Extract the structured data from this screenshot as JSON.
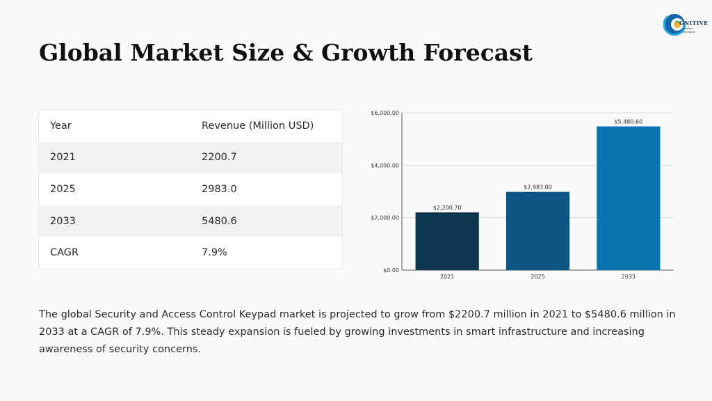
{
  "header": {
    "title": "Global Market Size & Growth Forecast",
    "logo": {
      "brand": "GNITIVE",
      "sub_line1": "market",
      "sub_line2": "research"
    }
  },
  "table": {
    "headers": [
      "Year",
      "Revenue (Million USD)"
    ],
    "rows": [
      [
        "2021",
        "2200.7"
      ],
      [
        "2025",
        "2983.0"
      ],
      [
        "2033",
        "5480.6"
      ],
      [
        "CAGR",
        "7.9%"
      ]
    ]
  },
  "chart_data": {
    "type": "bar",
    "categories": [
      "2021",
      "2025",
      "2033"
    ],
    "values": [
      2200.7,
      2983.0,
      5480.6
    ],
    "data_labels": [
      "$2,200.70",
      "$2,983.00",
      "$5,480.60"
    ],
    "colors": [
      "#0d3550",
      "#0b5683",
      "#0b73ae"
    ],
    "ylim": [
      0,
      6000
    ],
    "yticks": [
      0,
      2000,
      4000,
      6000
    ],
    "ytick_labels": [
      "$0.00",
      "$2,000.00",
      "$4,000.00",
      "$6,000.00"
    ],
    "title": "",
    "xlabel": "",
    "ylabel": "",
    "grid": true
  },
  "description": "The global Security and Access Control Keypad market is projected to grow from $2200.7 million in 2021 to $5480.6 million in 2033 at a CAGR of 7.9%. This steady expansion is fueled by growing investments in smart infrastructure and increasing awareness of security concerns."
}
